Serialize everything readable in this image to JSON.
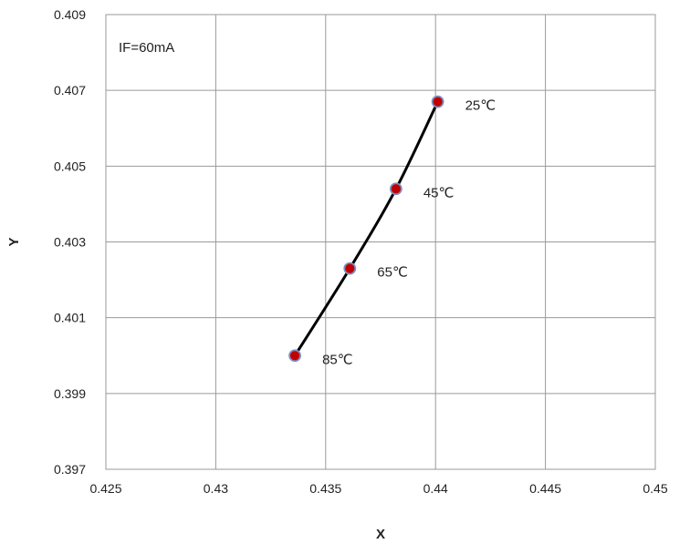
{
  "chart_data": {
    "type": "scatter",
    "title": "",
    "xlabel": "X",
    "ylabel": "Y",
    "xlim": [
      0.425,
      0.45
    ],
    "ylim": [
      0.397,
      0.409
    ],
    "x_ticks": [
      "0.425",
      "0.43",
      "0.435",
      "0.44",
      "0.445",
      "0.45"
    ],
    "y_ticks": [
      "0.397",
      "0.399",
      "0.401",
      "0.403",
      "0.405",
      "0.407",
      "0.409"
    ],
    "grid": true,
    "annotation": "IF=60mA",
    "series": [
      {
        "points": [
          {
            "x": 0.4401,
            "y": 0.4067,
            "label": "25℃"
          },
          {
            "x": 0.4382,
            "y": 0.4044,
            "label": "45℃"
          },
          {
            "x": 0.4361,
            "y": 0.4023,
            "label": "65℃"
          },
          {
            "x": 0.4336,
            "y": 0.4,
            "label": "85℃"
          }
        ]
      }
    ],
    "colors": {
      "marker_fill": "#c00000",
      "marker_stroke": "#7f8fbf",
      "line": "#000000",
      "grid": "#9a9a9a"
    }
  }
}
